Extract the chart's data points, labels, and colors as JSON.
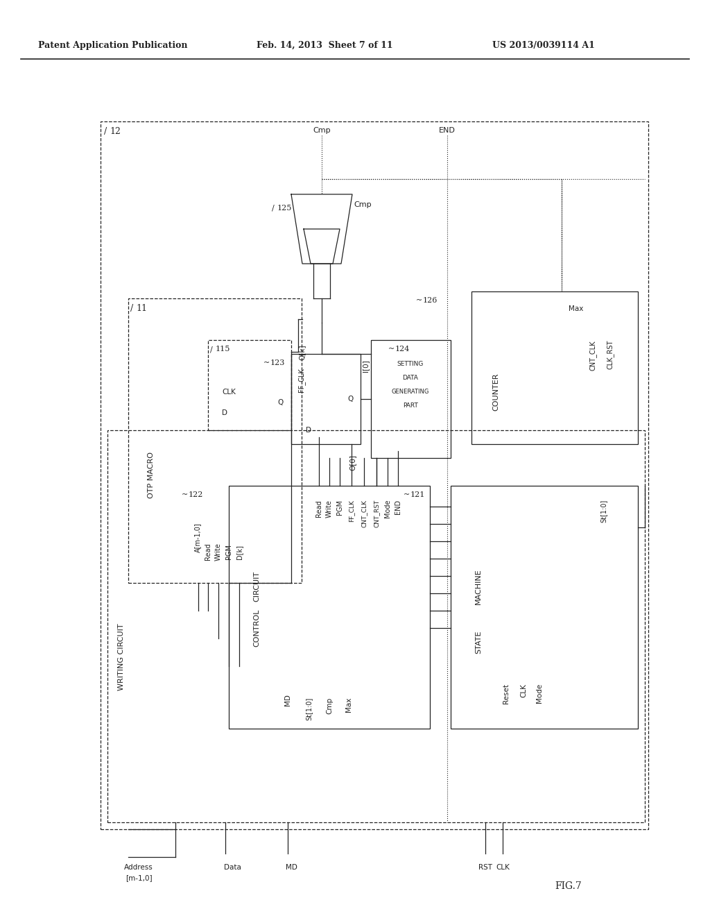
{
  "bg_color": "#ffffff",
  "line_color": "#222222",
  "header_left": "Patent Application Publication",
  "header_mid": "Feb. 14, 2013  Sheet 7 of 11",
  "header_right": "US 2013/0039114 A1",
  "fig_label": "FIG.7"
}
